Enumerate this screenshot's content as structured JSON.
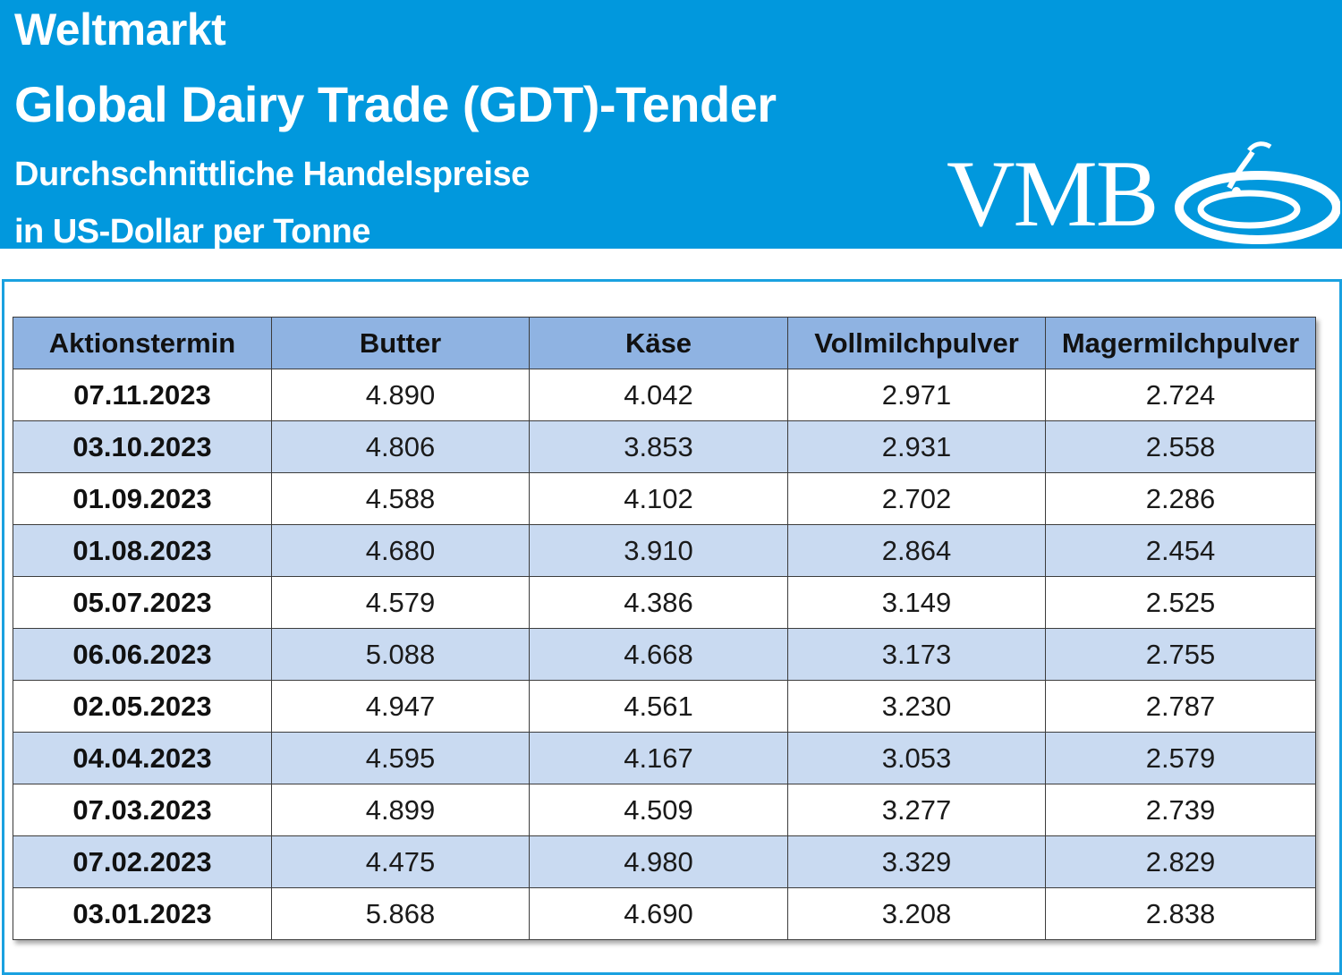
{
  "header": {
    "title": "Weltmarkt",
    "subtitle": "Global Dairy Trade (GDT)-Tender",
    "description_line1": "Durchschnittliche Handelspreise",
    "description_line2": "in US-Dollar per Tonne",
    "logo_text": "VMB",
    "background_color": "#0198dd"
  },
  "table": {
    "columns": [
      "Aktionstermin",
      "Butter",
      "Käse",
      "Vollmilchpulver",
      "Magermilchpulver"
    ],
    "rows": [
      [
        "07.11.2023",
        "4.890",
        "4.042",
        "2.971",
        "2.724"
      ],
      [
        "03.10.2023",
        "4.806",
        "3.853",
        "2.931",
        "2.558"
      ],
      [
        "01.09.2023",
        "4.588",
        "4.102",
        "2.702",
        "2.286"
      ],
      [
        "01.08.2023",
        "4.680",
        "3.910",
        "2.864",
        "2.454"
      ],
      [
        "05.07.2023",
        "4.579",
        "4.386",
        "3.149",
        "2.525"
      ],
      [
        "06.06.2023",
        "5.088",
        "4.668",
        "3.173",
        "2.755"
      ],
      [
        "02.05.2023",
        "4.947",
        "4.561",
        "3.230",
        "2.787"
      ],
      [
        "04.04.2023",
        "4.595",
        "4.167",
        "3.053",
        "2.579"
      ],
      [
        "07.03.2023",
        "4.899",
        "4.509",
        "3.277",
        "2.739"
      ],
      [
        "07.02.2023",
        "4.475",
        "4.980",
        "3.329",
        "2.829"
      ],
      [
        "03.01.2023",
        "5.868",
        "4.690",
        "3.208",
        "2.838"
      ]
    ],
    "header_color": "#8fb3e2",
    "stripe_color": "#c9daf1"
  }
}
